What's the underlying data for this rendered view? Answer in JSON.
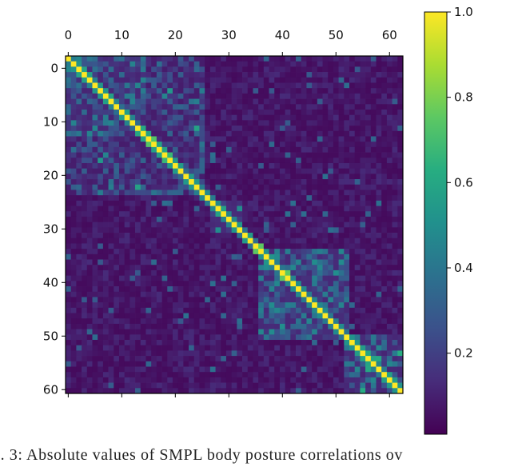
{
  "chart_data": {
    "type": "heatmap",
    "title": "",
    "xlabel": "",
    "ylabel": "",
    "size": 63,
    "xlim": [
      0,
      62
    ],
    "ylim": [
      62,
      0
    ],
    "x_ticks": [
      0,
      10,
      20,
      30,
      40,
      50,
      60
    ],
    "y_ticks": [
      0,
      10,
      20,
      30,
      40,
      50,
      60
    ],
    "x_tick_labels": [
      "0",
      "10",
      "20",
      "30",
      "40",
      "50",
      "60"
    ],
    "y_tick_labels": [
      "0",
      "10",
      "20",
      "30",
      "40",
      "50",
      "60"
    ],
    "x_axis_position": "top",
    "colormap": "viridis",
    "value_range": [
      0.0,
      1.0
    ],
    "colorbar": {
      "ticks": [
        1.0,
        0.8,
        0.6,
        0.4,
        0.2
      ],
      "tick_labels": [
        "1.0",
        "0.8",
        "0.6",
        "0.4",
        "0.2"
      ],
      "placement": "right"
    },
    "diagonal_value": 1.0,
    "background_level": 0.08,
    "blocks": [
      {
        "rows": [
          0,
          14
        ],
        "cols": [
          0,
          14
        ],
        "value": 0.3
      },
      {
        "rows": [
          0,
          25
        ],
        "cols": [
          0,
          25
        ],
        "value": 0.22
      },
      {
        "rows": [
          27,
          32
        ],
        "cols": [
          27,
          32
        ],
        "value": 0.32
      },
      {
        "rows": [
          36,
          52
        ],
        "cols": [
          36,
          52
        ],
        "value": 0.33
      },
      {
        "rows": [
          52,
          62
        ],
        "cols": [
          52,
          62
        ],
        "value": 0.3
      }
    ],
    "grid": false,
    "legend": "colorbar"
  },
  "caption": {
    "text": "g. 3: Absolute values of SMPL body posture correlations ov"
  }
}
